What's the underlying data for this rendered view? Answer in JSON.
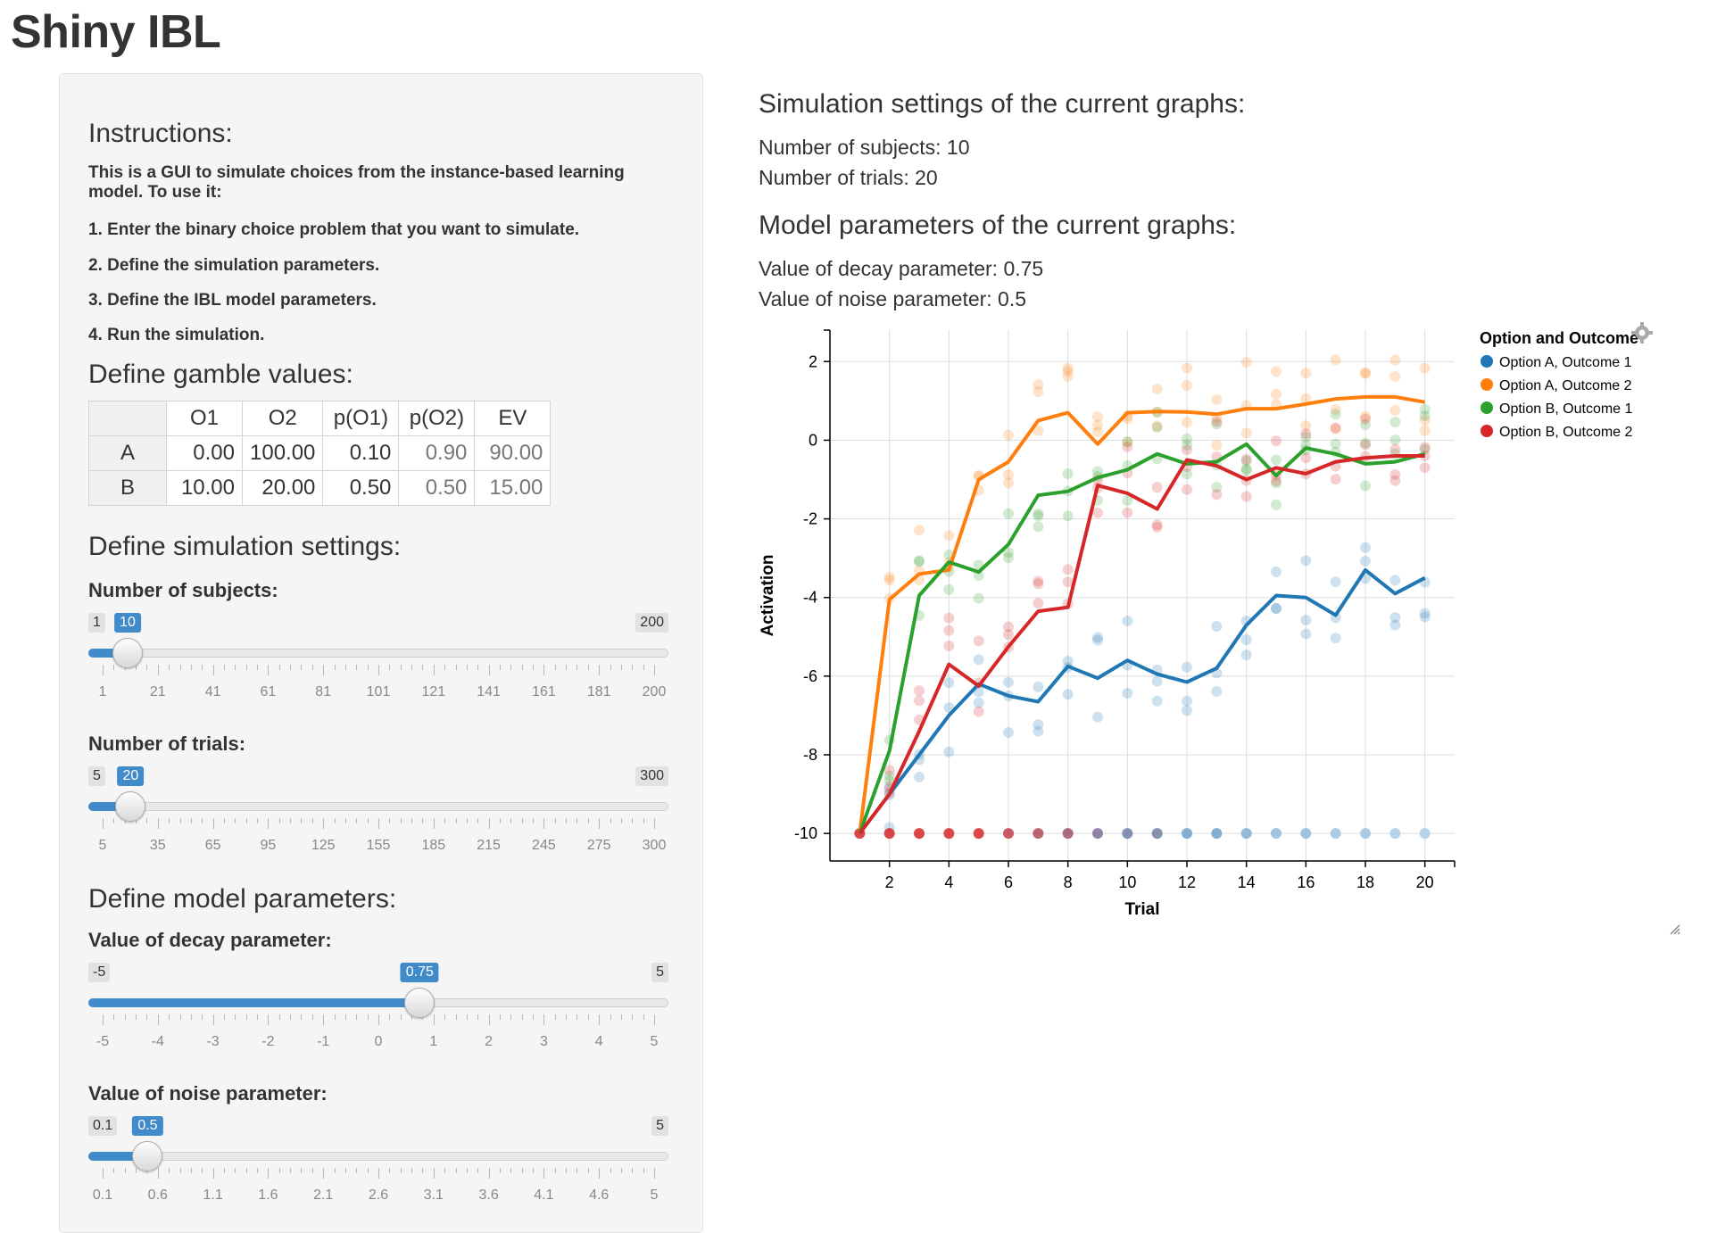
{
  "app": {
    "title": "Shiny IBL"
  },
  "sidebar": {
    "instructions_title": "Instructions:",
    "instructions_intro": "This is a GUI to simulate choices from the instance-based learning model. To use it:",
    "steps": [
      "1. Enter the binary choice problem that you want to simulate.",
      "2. Define the simulation parameters.",
      "3. Define the IBL model parameters.",
      "4. Run the simulation."
    ],
    "gamble_title": "Define gamble values:",
    "gamble_table": {
      "headers": [
        "",
        "O1",
        "O2",
        "p(O1)",
        "p(O2)",
        "EV"
      ],
      "rows": [
        [
          "A",
          "0.00",
          "100.00",
          "0.10",
          "0.90",
          "90.00"
        ],
        [
          "B",
          "10.00",
          "20.00",
          "0.50",
          "0.50",
          "15.00"
        ]
      ]
    },
    "sim_title": "Define simulation settings:",
    "model_title": "Define model parameters:",
    "sliders": [
      {
        "label": "Number of subjects:",
        "min": "1",
        "max": "200",
        "value": "10",
        "value_num": 10,
        "min_num": 1,
        "max_num": 200,
        "ticks": [
          "1",
          "21",
          "41",
          "61",
          "81",
          "101",
          "121",
          "141",
          "161",
          "181",
          "200"
        ]
      },
      {
        "label": "Number of trials:",
        "min": "5",
        "max": "300",
        "value": "20",
        "value_num": 20,
        "min_num": 5,
        "max_num": 300,
        "ticks": [
          "5",
          "35",
          "65",
          "95",
          "125",
          "155",
          "185",
          "215",
          "245",
          "275",
          "300"
        ]
      },
      {
        "label": "Value of decay parameter:",
        "min": "-5",
        "max": "5",
        "value": "0.75",
        "value_num": 0.75,
        "min_num": -5,
        "max_num": 5,
        "ticks": [
          "-5",
          "-4",
          "-3",
          "-2",
          "-1",
          "0",
          "1",
          "2",
          "3",
          "4",
          "5"
        ]
      },
      {
        "label": "Value of noise parameter:",
        "min": "0.1",
        "max": "5",
        "value": "0.5",
        "value_num": 0.5,
        "min_num": 0.1,
        "max_num": 5,
        "ticks": [
          "0.1",
          "0.6",
          "1.1",
          "1.6",
          "2.1",
          "2.6",
          "3.1",
          "3.6",
          "4.1",
          "4.6",
          "5"
        ]
      }
    ]
  },
  "main": {
    "sim_settings_title": "Simulation settings of the current graphs:",
    "subjects_line": "Number of subjects: 10",
    "trials_line": "Number of trials: 20",
    "model_params_title": "Model parameters of the current graphs:",
    "decay_line": "Value of decay parameter: 0.75",
    "noise_line": "Value of noise parameter: 0.5"
  },
  "icons": {
    "settings": "gear-icon",
    "resize": "resize-handle-icon"
  },
  "chart_data": {
    "type": "line",
    "xlabel": "Trial",
    "ylabel": "Activation",
    "xlim": [
      0,
      21
    ],
    "ylim": [
      -10.7,
      2.8
    ],
    "xticks": [
      2,
      4,
      6,
      8,
      10,
      12,
      14,
      16,
      18,
      20
    ],
    "yticks": [
      2,
      0,
      -2,
      -4,
      -6,
      -8,
      -10
    ],
    "grid": true,
    "legend_title": "Option and Outcome",
    "legend_position": "right",
    "x": [
      1,
      2,
      3,
      4,
      5,
      6,
      7,
      8,
      9,
      10,
      11,
      12,
      13,
      14,
      15,
      16,
      17,
      18,
      19,
      20
    ],
    "series": [
      {
        "name": "Option A, Outcome 1",
        "color": "#1f77b4",
        "values": [
          -10,
          -9.0,
          -8.0,
          -7.0,
          -6.2,
          -6.5,
          -6.65,
          -5.75,
          -6.05,
          -5.6,
          -5.95,
          -6.15,
          -5.8,
          -4.7,
          -3.95,
          -4.0,
          -4.45,
          -3.3,
          -3.9,
          -3.5
        ]
      },
      {
        "name": "Option A, Outcome 2",
        "color": "#ff7f0e",
        "values": [
          -10,
          -4.05,
          -3.4,
          -3.3,
          -1.0,
          -0.55,
          0.5,
          0.7,
          -0.1,
          0.7,
          0.73,
          0.72,
          0.66,
          0.8,
          0.8,
          0.92,
          1.05,
          1.1,
          1.1,
          0.97
        ]
      },
      {
        "name": "Option B, Outcome 1",
        "color": "#2ca02c",
        "values": [
          -10,
          -7.9,
          -3.95,
          -3.1,
          -3.35,
          -2.65,
          -1.4,
          -1.3,
          -0.95,
          -0.75,
          -0.35,
          -0.6,
          -0.55,
          -0.1,
          -0.9,
          -0.2,
          -0.35,
          -0.6,
          -0.55,
          -0.35
        ]
      },
      {
        "name": "Option B, Outcome 2",
        "color": "#d62728",
        "values": [
          -10,
          -9.0,
          -7.4,
          -5.7,
          -6.25,
          -5.25,
          -4.35,
          -4.25,
          -1.15,
          -1.35,
          -1.75,
          -0.5,
          -0.65,
          -1.0,
          -0.7,
          -0.85,
          -0.55,
          -0.45,
          -0.4,
          -0.4
        ]
      }
    ],
    "bottom_points": [
      {
        "x": 1,
        "color": "#d62728"
      },
      {
        "x": 2,
        "color": "#d62728"
      },
      {
        "x": 3,
        "color": "#d62728"
      },
      {
        "x": 4,
        "color": "#d62728"
      },
      {
        "x": 5,
        "color": "#d62728"
      },
      {
        "x": 6,
        "color": "#c0404a"
      },
      {
        "x": 7,
        "color": "#b04a58"
      },
      {
        "x": 8,
        "color": "#a0506a"
      },
      {
        "x": 9,
        "color": "#7f6f9a"
      },
      {
        "x": 10,
        "color": "#6f7fa8"
      },
      {
        "x": 11,
        "color": "#70809e"
      },
      {
        "x": 12,
        "color": "#6fa0cc"
      },
      {
        "x": 13,
        "color": "#6fa0cc"
      },
      {
        "x": 14,
        "color": "#7fb0d8"
      },
      {
        "x": 15,
        "color": "#8fbadd"
      },
      {
        "x": 16,
        "color": "#8fbadd"
      },
      {
        "x": 17,
        "color": "#9fc4e2"
      },
      {
        "x": 18,
        "color": "#9fc4e2"
      },
      {
        "x": 19,
        "color": "#aacde6"
      },
      {
        "x": 20,
        "color": "#aacde6"
      }
    ]
  }
}
